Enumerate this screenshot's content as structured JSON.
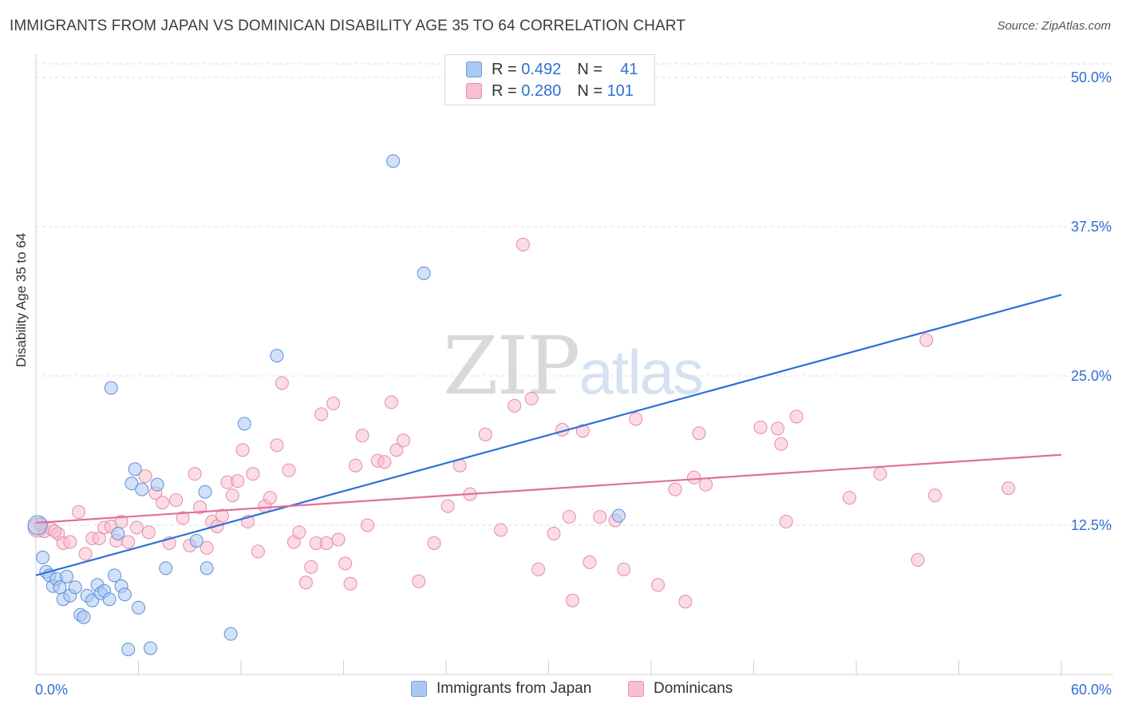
{
  "title": "IMMIGRANTS FROM JAPAN VS DOMINICAN DISABILITY AGE 35 TO 64 CORRELATION CHART",
  "source": "Source: ZipAtlas.com",
  "watermark": {
    "zip": "ZIP",
    "atlas": "atlas"
  },
  "legend": {
    "rows": [
      {
        "r_label": "R =",
        "r_value": "0.492",
        "n_label": "N =",
        "n_value": "41",
        "color": "#a9c8f2",
        "border": "#6f9be0"
      },
      {
        "r_label": "R =",
        "r_value": "0.280",
        "n_label": "N =",
        "n_value": "101",
        "color": "#f7bfd0",
        "border": "#e890ab"
      }
    ]
  },
  "bottom_legend": [
    {
      "label": "Immigrants from Japan",
      "color": "#a9c8f2",
      "border": "#6f9be0"
    },
    {
      "label": "Dominicans",
      "color": "#f7bfd0",
      "border": "#e890ab"
    }
  ],
  "chart_data": {
    "type": "scatter",
    "title": "IMMIGRANTS FROM JAPAN VS DOMINICAN DISABILITY AGE 35 TO 64 CORRELATION CHART",
    "xlabel": "",
    "ylabel": "Disability Age 35 to 64",
    "xlim": [
      0,
      60
    ],
    "ylim": [
      0,
      50
    ],
    "x_tick_labels": [
      {
        "value": 0,
        "label": "0.0%"
      },
      {
        "value": 60,
        "label": "60.0%"
      }
    ],
    "y_tick_labels": [
      {
        "value": 12.5,
        "label": "12.5%"
      },
      {
        "value": 25,
        "label": "25.0%"
      },
      {
        "value": 37.5,
        "label": "37.5%"
      },
      {
        "value": 50,
        "label": "50.0%"
      }
    ],
    "x_minor_ticks": [
      6,
      12,
      18,
      24,
      30,
      36,
      42,
      48,
      54,
      60
    ],
    "grid": true,
    "series": [
      {
        "name": "Immigrants from Japan",
        "color": "#a9c8f2",
        "stroke": "#5d8ed8",
        "line_color": "#2f6fd6",
        "trend": {
          "x0": 0,
          "y0": 8.3,
          "x1": 60,
          "y1": 31.8
        },
        "points": [
          [
            0.1,
            12.5
          ],
          [
            0.4,
            9.8
          ],
          [
            0.6,
            8.6
          ],
          [
            0.8,
            8.3
          ],
          [
            1.0,
            7.4
          ],
          [
            1.2,
            8.0
          ],
          [
            1.4,
            7.3
          ],
          [
            1.6,
            6.3
          ],
          [
            1.8,
            8.2
          ],
          [
            2.0,
            6.6
          ],
          [
            2.3,
            7.3
          ],
          [
            2.6,
            5.0
          ],
          [
            2.8,
            4.8
          ],
          [
            3.0,
            6.6
          ],
          [
            3.3,
            6.2
          ],
          [
            3.6,
            7.5
          ],
          [
            3.8,
            6.8
          ],
          [
            4.0,
            7.0
          ],
          [
            4.3,
            6.3
          ],
          [
            4.6,
            8.3
          ],
          [
            4.8,
            11.8
          ],
          [
            5.0,
            7.4
          ],
          [
            5.2,
            6.7
          ],
          [
            5.4,
            2.1
          ],
          [
            5.6,
            16.0
          ],
          [
            5.8,
            17.2
          ],
          [
            6.0,
            5.6
          ],
          [
            6.2,
            15.5
          ],
          [
            6.7,
            2.2
          ],
          [
            7.1,
            15.9
          ],
          [
            7.6,
            8.9
          ],
          [
            9.4,
            11.2
          ],
          [
            9.9,
            15.3
          ],
          [
            10.0,
            8.9
          ],
          [
            11.4,
            3.4
          ],
          [
            12.2,
            21.0
          ],
          [
            14.1,
            26.7
          ],
          [
            20.9,
            43.0
          ],
          [
            22.7,
            33.6
          ],
          [
            34.1,
            13.3
          ],
          [
            4.4,
            24.0
          ]
        ]
      },
      {
        "name": "Dominicans",
        "color": "#f7bfd0",
        "stroke": "#e58aa7",
        "line_color": "#e0709a",
        "trend": {
          "x0": 0,
          "y0": 12.7,
          "x1": 60,
          "y1": 18.4
        },
        "points": [
          [
            0.1,
            12.3
          ],
          [
            0.5,
            12.0
          ],
          [
            0.9,
            12.2
          ],
          [
            1.3,
            11.8
          ],
          [
            1.6,
            11.0
          ],
          [
            2.0,
            11.1
          ],
          [
            2.5,
            13.6
          ],
          [
            2.9,
            10.1
          ],
          [
            3.3,
            11.4
          ],
          [
            3.7,
            11.4
          ],
          [
            4.0,
            12.3
          ],
          [
            4.4,
            12.4
          ],
          [
            4.7,
            11.2
          ],
          [
            5.0,
            12.8
          ],
          [
            5.4,
            11.1
          ],
          [
            5.9,
            12.3
          ],
          [
            6.4,
            16.6
          ],
          [
            6.6,
            11.9
          ],
          [
            7.0,
            15.2
          ],
          [
            7.4,
            14.4
          ],
          [
            7.8,
            11.0
          ],
          [
            8.2,
            14.6
          ],
          [
            8.6,
            13.1
          ],
          [
            9.0,
            10.8
          ],
          [
            9.3,
            16.8
          ],
          [
            9.6,
            14.0
          ],
          [
            10.0,
            10.6
          ],
          [
            10.3,
            12.8
          ],
          [
            10.6,
            12.4
          ],
          [
            10.9,
            13.3
          ],
          [
            11.2,
            16.1
          ],
          [
            11.5,
            15.0
          ],
          [
            11.8,
            16.2
          ],
          [
            12.1,
            18.8
          ],
          [
            12.4,
            12.8
          ],
          [
            12.7,
            16.8
          ],
          [
            13.0,
            10.3
          ],
          [
            13.4,
            14.1
          ],
          [
            13.7,
            14.8
          ],
          [
            14.1,
            19.2
          ],
          [
            14.4,
            24.4
          ],
          [
            14.8,
            17.1
          ],
          [
            15.1,
            11.1
          ],
          [
            15.4,
            11.9
          ],
          [
            15.8,
            7.7
          ],
          [
            16.1,
            9.0
          ],
          [
            16.4,
            11.0
          ],
          [
            16.7,
            21.8
          ],
          [
            17.0,
            11.0
          ],
          [
            17.4,
            22.7
          ],
          [
            17.7,
            11.3
          ],
          [
            18.1,
            9.3
          ],
          [
            18.4,
            7.6
          ],
          [
            18.7,
            17.5
          ],
          [
            19.1,
            20.0
          ],
          [
            19.4,
            12.5
          ],
          [
            20.0,
            17.9
          ],
          [
            20.4,
            17.8
          ],
          [
            20.8,
            22.8
          ],
          [
            21.1,
            18.8
          ],
          [
            21.5,
            19.6
          ],
          [
            22.4,
            7.8
          ],
          [
            23.3,
            11.0
          ],
          [
            24.1,
            14.1
          ],
          [
            24.8,
            17.5
          ],
          [
            25.4,
            15.1
          ],
          [
            26.3,
            20.1
          ],
          [
            27.2,
            12.1
          ],
          [
            28.0,
            22.5
          ],
          [
            28.5,
            36.0
          ],
          [
            29.0,
            23.1
          ],
          [
            29.4,
            8.8
          ],
          [
            30.3,
            11.8
          ],
          [
            30.8,
            20.5
          ],
          [
            31.2,
            13.2
          ],
          [
            31.4,
            6.2
          ],
          [
            32.0,
            20.4
          ],
          [
            32.4,
            9.4
          ],
          [
            33.0,
            13.2
          ],
          [
            33.9,
            12.9
          ],
          [
            34.4,
            8.8
          ],
          [
            35.1,
            21.4
          ],
          [
            36.4,
            7.5
          ],
          [
            37.4,
            15.5
          ],
          [
            38.0,
            6.1
          ],
          [
            38.5,
            16.5
          ],
          [
            38.8,
            20.2
          ],
          [
            39.2,
            15.9
          ],
          [
            42.4,
            20.7
          ],
          [
            43.4,
            20.6
          ],
          [
            43.6,
            19.3
          ],
          [
            43.9,
            12.8
          ],
          [
            44.5,
            21.6
          ],
          [
            47.6,
            14.8
          ],
          [
            49.4,
            16.8
          ],
          [
            51.6,
            9.6
          ],
          [
            52.1,
            28.0
          ],
          [
            52.6,
            15.0
          ],
          [
            56.9,
            15.6
          ],
          [
            0.3,
            12.6
          ],
          [
            1.1,
            12.0
          ]
        ]
      }
    ]
  }
}
